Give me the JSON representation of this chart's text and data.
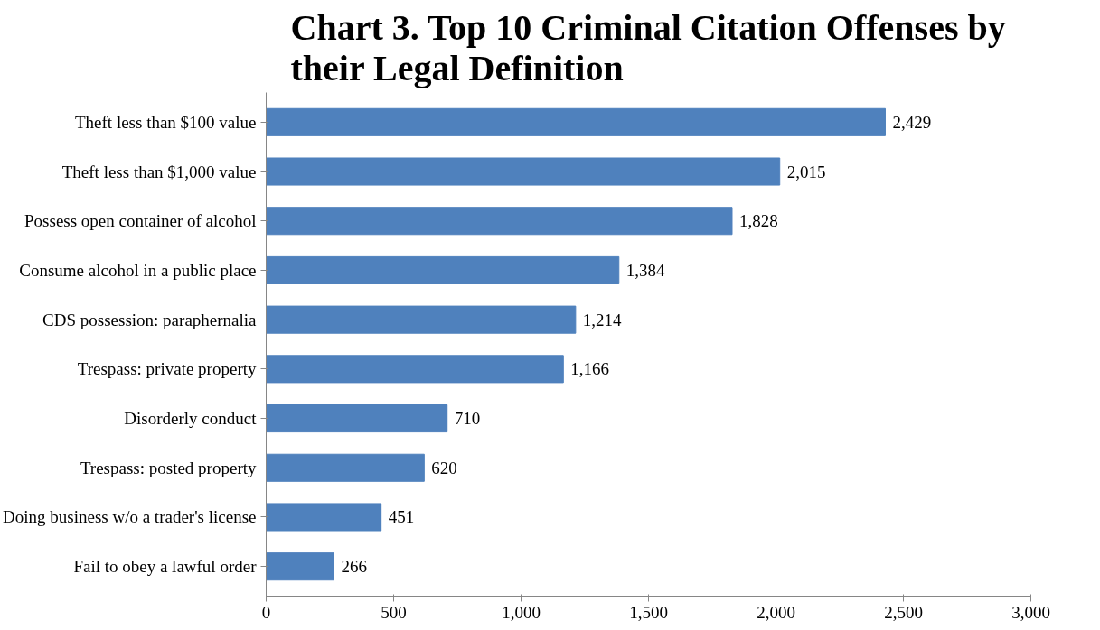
{
  "chart_data": {
    "type": "bar",
    "orientation": "horizontal",
    "title": "Chart 3. Top 10 Criminal Citation Offenses by their Legal Definition",
    "categories": [
      "Theft less than $100 value",
      "Theft less than $1,000 value",
      "Possess open container of alcohol",
      "Consume alcohol in a public place",
      "CDS possession: paraphernalia",
      "Trespass: private property",
      "Disorderly conduct",
      "Trespass: posted property",
      "Doing business w/o a trader's license",
      "Fail to obey a lawful order"
    ],
    "values": [
      2429,
      2015,
      1828,
      1384,
      1214,
      1166,
      710,
      620,
      451,
      266
    ],
    "value_labels": [
      "2,429",
      "2,015",
      "1,828",
      "1,384",
      "1,214",
      "1,166",
      "710",
      "620",
      "451",
      "266"
    ],
    "color": "#4f81bd",
    "xlim": [
      0,
      3000
    ],
    "xticks": [
      0,
      500,
      {
        "value": 1000,
        "label": "1,000"
      },
      {
        "value": 1500,
        "label": "1,500"
      },
      {
        "value": 2000,
        "label": "2,000"
      },
      {
        "value": 2500,
        "label": "2,500"
      },
      {
        "value": 3000,
        "label": "3,000"
      }
    ],
    "grid": false
  }
}
